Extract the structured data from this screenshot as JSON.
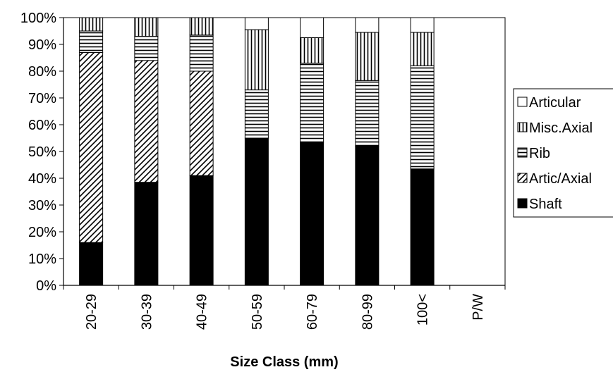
{
  "chart_data": {
    "type": "bar",
    "stacked": true,
    "percent": true,
    "title": "",
    "xlabel": "Size Class (mm)",
    "ylabel": "",
    "ylim": [
      0,
      100
    ],
    "yticks": [
      "0%",
      "10%",
      "20%",
      "30%",
      "40%",
      "50%",
      "60%",
      "70%",
      "80%",
      "90%",
      "100%"
    ],
    "categories": [
      "20-29",
      "30-39",
      "40-49",
      "50-59",
      "60-79",
      "80-99",
      "100<",
      "P/W"
    ],
    "legend_position": "right",
    "grid": false,
    "series": [
      {
        "name": "Shaft",
        "pattern": "solid",
        "values": [
          16,
          38.5,
          41,
          55,
          53.5,
          52,
          43.5,
          0
        ]
      },
      {
        "name": "Artic/Axial",
        "pattern": "diagonal",
        "values": [
          71,
          45.5,
          39,
          0,
          0,
          0,
          0,
          0
        ]
      },
      {
        "name": "Rib",
        "pattern": "horizontal",
        "values": [
          8,
          9,
          13.5,
          18,
          29.5,
          24.5,
          38.5,
          0
        ]
      },
      {
        "name": "Misc.Axial",
        "pattern": "vertical",
        "values": [
          5,
          7,
          6.5,
          22.5,
          9.5,
          18,
          12.5,
          0
        ]
      },
      {
        "name": "Articular",
        "pattern": "blank",
        "values": [
          0,
          0,
          0,
          4.5,
          7.5,
          5.5,
          5.5,
          0
        ]
      }
    ],
    "legend_order": [
      "Articular",
      "Misc.Axial",
      "Rib",
      "Artic/Axial",
      "Shaft"
    ]
  }
}
